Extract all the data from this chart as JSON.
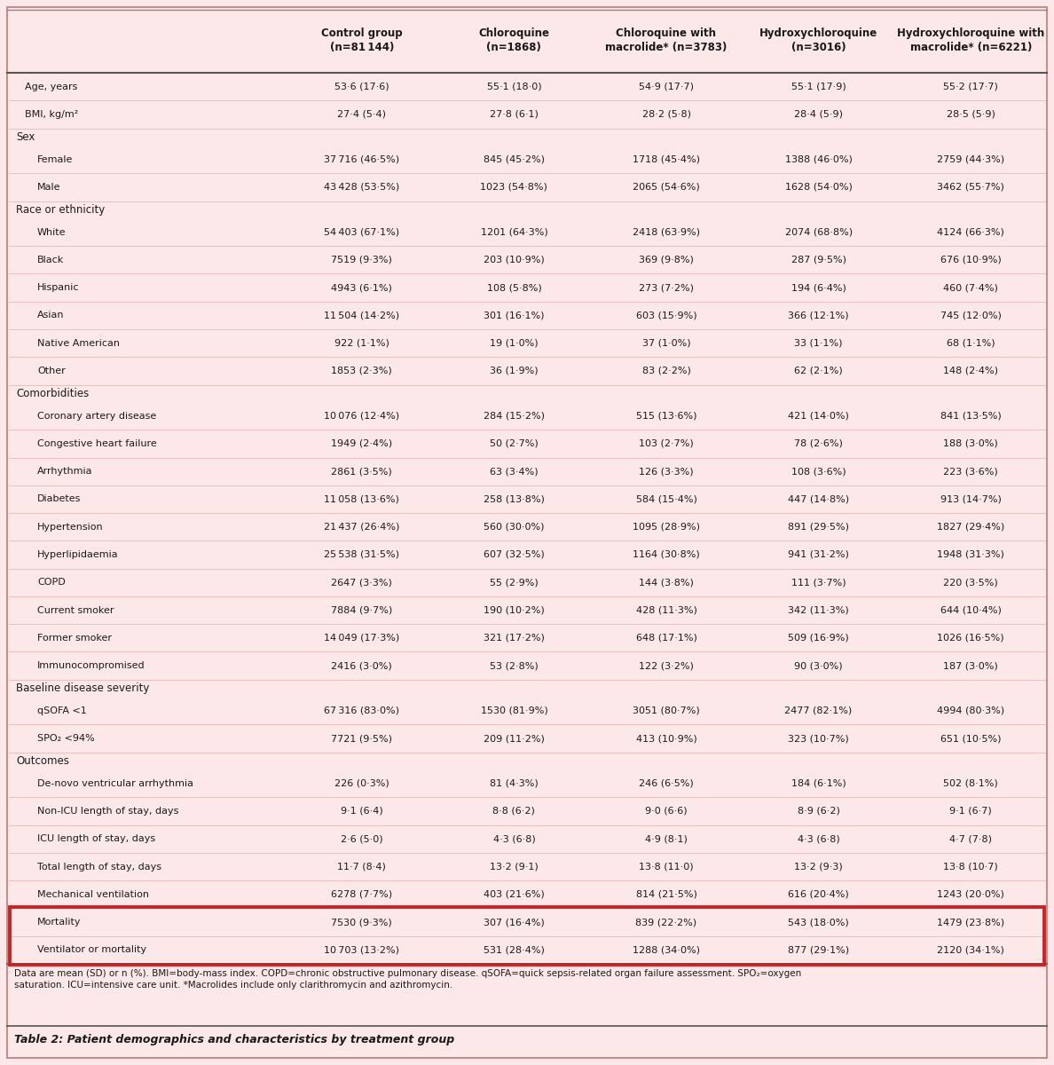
{
  "background_color": "#fce8e8",
  "highlight_border": "#cc2222",
  "title": "Table 2: Patient demographics and characteristics by treatment group",
  "footnote": "Data are mean (SD) or n (%). BMI=body-mass index. COPD=chronic obstructive pulmonary disease. qSOFA=quick sepsis-related organ failure assessment. SPO₂=oxygen\nsaturation. ICU=intensive care unit. *Macrolides include only clarithromycin and azithromycin.",
  "columns": [
    "",
    "Control group\n(n=81 144)",
    "Chloroquine\n(n=1868)",
    "Chloroquine with\nmacrolide* (n=3783)",
    "Hydroxychloroquine\n(n=3016)",
    "Hydroxychloroquine with\nmacrolide* (n=6221)"
  ],
  "rows": [
    {
      "label": "Age, years",
      "indent": 0,
      "section": false,
      "highlight": false,
      "values": [
        "53·6 (17·6)",
        "55·1 (18·0)",
        "54·9 (17·7)",
        "55·1 (17·9)",
        "55·2 (17·7)"
      ]
    },
    {
      "label": "BMI, kg/m²",
      "indent": 0,
      "section": false,
      "highlight": false,
      "values": [
        "27·4 (5·4)",
        "27·8 (6·1)",
        "28·2 (5·8)",
        "28·4 (5·9)",
        "28·5 (5·9)"
      ]
    },
    {
      "label": "Sex",
      "indent": 0,
      "section": true,
      "highlight": false,
      "values": [
        "",
        "",
        "",
        "",
        ""
      ]
    },
    {
      "label": "Female",
      "indent": 1,
      "section": false,
      "highlight": false,
      "values": [
        "37 716 (46·5%)",
        "845 (45·2%)",
        "1718 (45·4%)",
        "1388 (46·0%)",
        "2759 (44·3%)"
      ]
    },
    {
      "label": "Male",
      "indent": 1,
      "section": false,
      "highlight": false,
      "values": [
        "43 428 (53·5%)",
        "1023 (54·8%)",
        "2065 (54·6%)",
        "1628 (54·0%)",
        "3462 (55·7%)"
      ]
    },
    {
      "label": "Race or ethnicity",
      "indent": 0,
      "section": true,
      "highlight": false,
      "values": [
        "",
        "",
        "",
        "",
        ""
      ]
    },
    {
      "label": "White",
      "indent": 1,
      "section": false,
      "highlight": false,
      "values": [
        "54 403 (67·1%)",
        "1201 (64·3%)",
        "2418 (63·9%)",
        "2074 (68·8%)",
        "4124 (66·3%)"
      ]
    },
    {
      "label": "Black",
      "indent": 1,
      "section": false,
      "highlight": false,
      "values": [
        "7519 (9·3%)",
        "203 (10·9%)",
        "369 (9·8%)",
        "287 (9·5%)",
        "676 (10·9%)"
      ]
    },
    {
      "label": "Hispanic",
      "indent": 1,
      "section": false,
      "highlight": false,
      "values": [
        "4943 (6·1%)",
        "108 (5·8%)",
        "273 (7·2%)",
        "194 (6·4%)",
        "460 (7·4%)"
      ]
    },
    {
      "label": "Asian",
      "indent": 1,
      "section": false,
      "highlight": false,
      "values": [
        "11 504 (14·2%)",
        "301 (16·1%)",
        "603 (15·9%)",
        "366 (12·1%)",
        "745 (12·0%)"
      ]
    },
    {
      "label": "Native American",
      "indent": 1,
      "section": false,
      "highlight": false,
      "values": [
        "922 (1·1%)",
        "19 (1·0%)",
        "37 (1·0%)",
        "33 (1·1%)",
        "68 (1·1%)"
      ]
    },
    {
      "label": "Other",
      "indent": 1,
      "section": false,
      "highlight": false,
      "values": [
        "1853 (2·3%)",
        "36 (1·9%)",
        "83 (2·2%)",
        "62 (2·1%)",
        "148 (2·4%)"
      ]
    },
    {
      "label": "Comorbidities",
      "indent": 0,
      "section": true,
      "highlight": false,
      "values": [
        "",
        "",
        "",
        "",
        ""
      ]
    },
    {
      "label": "Coronary artery disease",
      "indent": 1,
      "section": false,
      "highlight": false,
      "values": [
        "10 076 (12·4%)",
        "284 (15·2%)",
        "515 (13·6%)",
        "421 (14·0%)",
        "841 (13·5%)"
      ]
    },
    {
      "label": "Congestive heart failure",
      "indent": 1,
      "section": false,
      "highlight": false,
      "values": [
        "1949 (2·4%)",
        "50 (2·7%)",
        "103 (2·7%)",
        "78 (2·6%)",
        "188 (3·0%)"
      ]
    },
    {
      "label": "Arrhythmia",
      "indent": 1,
      "section": false,
      "highlight": false,
      "values": [
        "2861 (3·5%)",
        "63 (3·4%)",
        "126 (3·3%)",
        "108 (3·6%)",
        "223 (3·6%)"
      ]
    },
    {
      "label": "Diabetes",
      "indent": 1,
      "section": false,
      "highlight": false,
      "values": [
        "11 058 (13·6%)",
        "258 (13·8%)",
        "584 (15·4%)",
        "447 (14·8%)",
        "913 (14·7%)"
      ]
    },
    {
      "label": "Hypertension",
      "indent": 1,
      "section": false,
      "highlight": false,
      "values": [
        "21 437 (26·4%)",
        "560 (30·0%)",
        "1095 (28·9%)",
        "891 (29·5%)",
        "1827 (29·4%)"
      ]
    },
    {
      "label": "Hyperlipidaemia",
      "indent": 1,
      "section": false,
      "highlight": false,
      "values": [
        "25 538 (31·5%)",
        "607 (32·5%)",
        "1164 (30·8%)",
        "941 (31·2%)",
        "1948 (31·3%)"
      ]
    },
    {
      "label": "COPD",
      "indent": 1,
      "section": false,
      "highlight": false,
      "values": [
        "2647 (3·3%)",
        "55 (2·9%)",
        "144 (3·8%)",
        "111 (3·7%)",
        "220 (3·5%)"
      ]
    },
    {
      "label": "Current smoker",
      "indent": 1,
      "section": false,
      "highlight": false,
      "values": [
        "7884 (9·7%)",
        "190 (10·2%)",
        "428 (11·3%)",
        "342 (11·3%)",
        "644 (10·4%)"
      ]
    },
    {
      "label": "Former smoker",
      "indent": 1,
      "section": false,
      "highlight": false,
      "values": [
        "14 049 (17·3%)",
        "321 (17·2%)",
        "648 (17·1%)",
        "509 (16·9%)",
        "1026 (16·5%)"
      ]
    },
    {
      "label": "Immunocompromised",
      "indent": 1,
      "section": false,
      "highlight": false,
      "values": [
        "2416 (3·0%)",
        "53 (2·8%)",
        "122 (3·2%)",
        "90 (3·0%)",
        "187 (3·0%)"
      ]
    },
    {
      "label": "Baseline disease severity",
      "indent": 0,
      "section": true,
      "highlight": false,
      "values": [
        "",
        "",
        "",
        "",
        ""
      ]
    },
    {
      "label": "qSOFA <1",
      "indent": 1,
      "section": false,
      "highlight": false,
      "values": [
        "67 316 (83·0%)",
        "1530 (81·9%)",
        "3051 (80·7%)",
        "2477 (82·1%)",
        "4994 (80·3%)"
      ]
    },
    {
      "label": "SPO₂ <94%",
      "indent": 1,
      "section": false,
      "highlight": false,
      "values": [
        "7721 (9·5%)",
        "209 (11·2%)",
        "413 (10·9%)",
        "323 (10·7%)",
        "651 (10·5%)"
      ]
    },
    {
      "label": "Outcomes",
      "indent": 0,
      "section": true,
      "highlight": false,
      "values": [
        "",
        "",
        "",
        "",
        ""
      ]
    },
    {
      "label": "De-novo ventricular arrhythmia",
      "indent": 1,
      "section": false,
      "highlight": false,
      "values": [
        "226 (0·3%)",
        "81 (4·3%)",
        "246 (6·5%)",
        "184 (6·1%)",
        "502 (8·1%)"
      ]
    },
    {
      "label": "Non-ICU length of stay, days",
      "indent": 1,
      "section": false,
      "highlight": false,
      "values": [
        "9·1 (6·4)",
        "8·8 (6·2)",
        "9·0 (6·6)",
        "8·9 (6·2)",
        "9·1 (6·7)"
      ]
    },
    {
      "label": "ICU length of stay, days",
      "indent": 1,
      "section": false,
      "highlight": false,
      "values": [
        "2·6 (5·0)",
        "4·3 (6·8)",
        "4·9 (8·1)",
        "4·3 (6·8)",
        "4·7 (7·8)"
      ]
    },
    {
      "label": "Total length of stay, days",
      "indent": 1,
      "section": false,
      "highlight": false,
      "values": [
        "11·7 (8·4)",
        "13·2 (9·1)",
        "13·8 (11·0)",
        "13·2 (9·3)",
        "13·8 (10·7)"
      ]
    },
    {
      "label": "Mechanical ventilation",
      "indent": 1,
      "section": false,
      "highlight": false,
      "values": [
        "6278 (7·7%)",
        "403 (21·6%)",
        "814 (21·5%)",
        "616 (20·4%)",
        "1243 (20·0%)"
      ]
    },
    {
      "label": "Mortality",
      "indent": 1,
      "section": false,
      "highlight": true,
      "values": [
        "7530 (9·3%)",
        "307 (16·4%)",
        "839 (22·2%)",
        "543 (18·0%)",
        "1479 (23·8%)"
      ]
    },
    {
      "label": "Ventilator or mortality",
      "indent": 1,
      "section": false,
      "highlight": true,
      "values": [
        "10 703 (13·2%)",
        "531 (28·4%)",
        "1288 (34·0%)",
        "877 (29·1%)",
        "2120 (34·1%)"
      ]
    }
  ]
}
